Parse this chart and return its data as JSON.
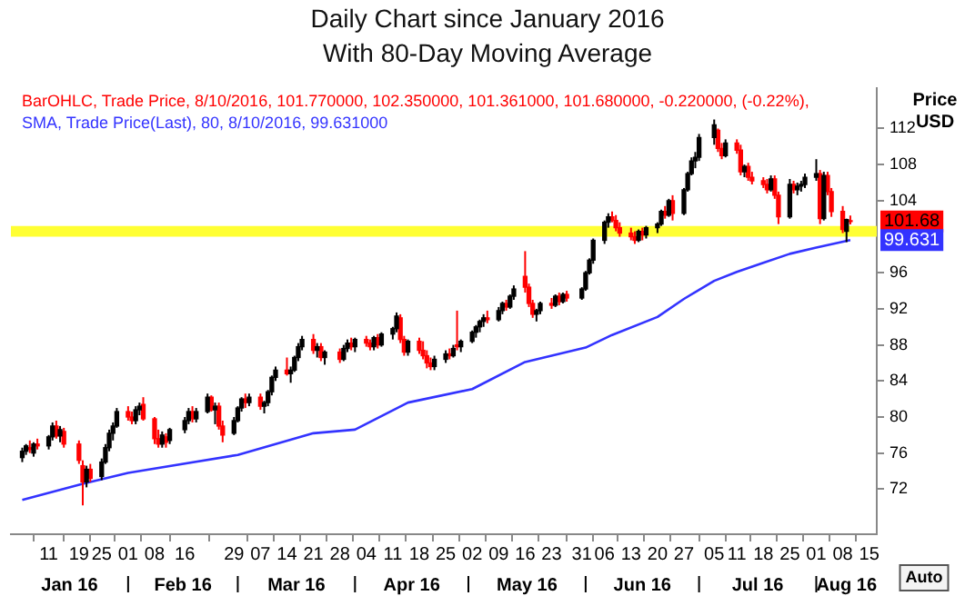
{
  "chart_data": {
    "type": "candlestick",
    "title": "Daily Chart since January 2016",
    "subtitle": "With 80-Day Moving Average",
    "ylabel": "Price USD",
    "xlim": [
      "2016-01-01",
      "2016-08-17"
    ],
    "xticks": [
      {
        "value": "2016-01-11",
        "label": "11"
      },
      {
        "value": "2016-01-19",
        "label": "19"
      },
      {
        "value": "2016-01-25",
        "label": "25"
      },
      {
        "value": "2016-02-01",
        "label": "01"
      },
      {
        "value": "2016-02-08",
        "label": "08"
      },
      {
        "value": "2016-02-16",
        "label": "16"
      },
      {
        "value": "2016-02-29",
        "label": "29"
      },
      {
        "value": "2016-03-07",
        "label": "07"
      },
      {
        "value": "2016-03-14",
        "label": "14"
      },
      {
        "value": "2016-03-21",
        "label": "21"
      },
      {
        "value": "2016-03-28",
        "label": "28"
      },
      {
        "value": "2016-04-04",
        "label": "04"
      },
      {
        "value": "2016-04-11",
        "label": "11"
      },
      {
        "value": "2016-04-18",
        "label": "18"
      },
      {
        "value": "2016-04-25",
        "label": "25"
      },
      {
        "value": "2016-05-02",
        "label": "02"
      },
      {
        "value": "2016-05-09",
        "label": "09"
      },
      {
        "value": "2016-05-16",
        "label": "16"
      },
      {
        "value": "2016-05-23",
        "label": "23"
      },
      {
        "value": "2016-05-31",
        "label": "31"
      },
      {
        "value": "2016-06-06",
        "label": "06"
      },
      {
        "value": "2016-06-13",
        "label": "13"
      },
      {
        "value": "2016-06-20",
        "label": "20"
      },
      {
        "value": "2016-06-27",
        "label": "27"
      },
      {
        "value": "2016-07-05",
        "label": "05"
      },
      {
        "value": "2016-07-11",
        "label": "11"
      },
      {
        "value": "2016-07-18",
        "label": "18"
      },
      {
        "value": "2016-07-25",
        "label": "25"
      },
      {
        "value": "2016-08-01",
        "label": "01"
      },
      {
        "value": "2016-08-08",
        "label": "08"
      },
      {
        "value": "2016-08-15",
        "label": "15"
      }
    ],
    "ylim": [
      67,
      116.5
    ],
    "yticks": [
      72,
      76,
      80,
      84,
      88,
      92,
      96,
      104,
      108,
      112
    ],
    "grid": false,
    "legend": "top left",
    "bands": [
      {
        "axis": "y",
        "from": 100.0,
        "to": 101.2,
        "color": "#ffff33"
      }
    ],
    "annotations": [
      {
        "text": "101.68",
        "y": 101.68
      },
      {
        "text": "99.631",
        "y": 99.631
      },
      "Jan 16",
      "Feb 16",
      "Mar 16",
      "Apr 16",
      "May 16",
      "Jun 16",
      "Jul 16",
      "Aug 16",
      "Auto"
    ],
    "series": [
      {
        "color": "#000000",
        "x": [
          "2016-01-04",
          "2016-01-05",
          "2016-01-07",
          "2016-01-11",
          "2016-01-12",
          "2016-01-14",
          "2016-01-21",
          "2016-01-25",
          "2016-01-26",
          "2016-01-27",
          "2016-01-28",
          "2016-01-29",
          "2016-02-03",
          "2016-02-04",
          "2016-02-10",
          "2016-02-12",
          "2016-02-16",
          "2016-02-17",
          "2016-02-19",
          "2016-02-22",
          "2016-02-24",
          "2016-02-29",
          "2016-03-01",
          "2016-03-02",
          "2016-03-04",
          "2016-03-08",
          "2016-03-09",
          "2016-03-10",
          "2016-03-11",
          "2016-03-15",
          "2016-03-16",
          "2016-03-17",
          "2016-03-18",
          "2016-03-22",
          "2016-03-24",
          "2016-03-29",
          "2016-03-30",
          "2016-04-01",
          "2016-04-06",
          "2016-04-08",
          "2016-04-11",
          "2016-04-12",
          "2016-04-15",
          "2016-04-22",
          "2016-04-25",
          "2016-04-27",
          "2016-04-29",
          "2016-05-02",
          "2016-05-03",
          "2016-05-04",
          "2016-05-05",
          "2016-05-09",
          "2016-05-10",
          "2016-05-12",
          "2016-05-13",
          "2016-05-19",
          "2016-05-20",
          "2016-05-24",
          "2016-05-26",
          "2016-05-31",
          "2016-06-01",
          "2016-06-02",
          "2016-06-03",
          "2016-06-06",
          "2016-06-07",
          "2016-06-15",
          "2016-06-17",
          "2016-06-20",
          "2016-06-21",
          "2016-06-23",
          "2016-06-27",
          "2016-06-28",
          "2016-06-29",
          "2016-06-30",
          "2016-07-01",
          "2016-07-05",
          "2016-07-08",
          "2016-07-13",
          "2016-07-20",
          "2016-07-25",
          "2016-07-27",
          "2016-07-28",
          "2016-07-29",
          "2016-08-01",
          "2016-08-03",
          "2016-08-09"
        ],
        "ohlc": [
          [
            75.5,
            76.6,
            75.0,
            76.2
          ],
          [
            76.2,
            77.0,
            75.8,
            76.8
          ],
          [
            76.0,
            77.2,
            75.6,
            77.0
          ],
          [
            76.8,
            78.0,
            76.4,
            77.8
          ],
          [
            77.8,
            79.4,
            77.4,
            79.0
          ],
          [
            77.9,
            79.0,
            77.2,
            78.6
          ],
          [
            72.8,
            74.6,
            72.2,
            74.2
          ],
          [
            73.4,
            75.4,
            73.0,
            75.0
          ],
          [
            75.0,
            77.0,
            74.8,
            76.6
          ],
          [
            76.6,
            78.6,
            76.2,
            78.2
          ],
          [
            78.2,
            79.4,
            77.4,
            79.0
          ],
          [
            79.0,
            81.0,
            78.8,
            80.6
          ],
          [
            79.6,
            81.2,
            79.2,
            80.8
          ],
          [
            80.8,
            81.6,
            80.2,
            81.2
          ],
          [
            77.0,
            78.4,
            76.6,
            78.0
          ],
          [
            77.4,
            78.8,
            77.0,
            78.6
          ],
          [
            78.6,
            80.0,
            78.2,
            79.6
          ],
          [
            79.6,
            81.0,
            79.2,
            80.6
          ],
          [
            79.8,
            81.0,
            79.4,
            80.6
          ],
          [
            80.6,
            82.6,
            80.4,
            82.2
          ],
          [
            80.8,
            81.6,
            79.2,
            81.2
          ],
          [
            78.2,
            80.0,
            78.0,
            79.6
          ],
          [
            79.6,
            81.2,
            79.4,
            81.0
          ],
          [
            81.0,
            82.2,
            80.6,
            82.0
          ],
          [
            81.6,
            82.6,
            81.2,
            82.2
          ],
          [
            81.2,
            81.8,
            80.4,
            81.6
          ],
          [
            81.6,
            83.0,
            81.2,
            82.8
          ],
          [
            82.8,
            84.6,
            82.4,
            84.4
          ],
          [
            84.4,
            85.6,
            84.0,
            85.2
          ],
          [
            84.8,
            85.6,
            83.8,
            85.2
          ],
          [
            85.2,
            86.8,
            85.0,
            86.6
          ],
          [
            86.6,
            88.2,
            86.2,
            87.8
          ],
          [
            87.8,
            89.0,
            87.4,
            88.6
          ],
          [
            87.4,
            88.2,
            86.6,
            87.8
          ],
          [
            86.6,
            87.4,
            85.8,
            87.2
          ],
          [
            86.4,
            88.0,
            86.2,
            87.6
          ],
          [
            87.6,
            88.6,
            87.2,
            88.2
          ],
          [
            87.8,
            88.8,
            87.2,
            88.6
          ],
          [
            87.8,
            89.0,
            87.4,
            88.8
          ],
          [
            88.0,
            89.4,
            87.8,
            89.2
          ],
          [
            89.2,
            90.0,
            88.6,
            89.8
          ],
          [
            89.8,
            91.6,
            89.4,
            91.2
          ],
          [
            87.2,
            88.6,
            86.8,
            88.4
          ],
          [
            85.6,
            86.8,
            85.2,
            86.4
          ],
          [
            86.4,
            87.4,
            86.0,
            87.0
          ],
          [
            86.8,
            88.0,
            86.6,
            87.6
          ],
          [
            87.8,
            88.6,
            87.2,
            88.4
          ],
          [
            88.4,
            89.6,
            88.2,
            89.4
          ],
          [
            89.4,
            90.2,
            88.8,
            90.0
          ],
          [
            90.0,
            90.8,
            89.4,
            90.6
          ],
          [
            90.6,
            91.4,
            90.0,
            91.0
          ],
          [
            90.8,
            92.2,
            90.6,
            91.8
          ],
          [
            91.8,
            92.8,
            91.4,
            92.6
          ],
          [
            92.2,
            93.6,
            92.0,
            93.4
          ],
          [
            93.4,
            94.6,
            93.0,
            94.2
          ],
          [
            91.4,
            92.0,
            90.6,
            91.8
          ],
          [
            91.8,
            92.8,
            91.4,
            92.6
          ],
          [
            92.4,
            93.6,
            92.2,
            93.4
          ],
          [
            92.8,
            93.8,
            92.6,
            93.6
          ],
          [
            93.2,
            94.4,
            93.0,
            94.2
          ],
          [
            94.2,
            96.2,
            94.0,
            96.0
          ],
          [
            96.0,
            97.6,
            95.8,
            97.4
          ],
          [
            97.4,
            99.8,
            97.0,
            99.6
          ],
          [
            99.6,
            101.8,
            99.2,
            101.6
          ],
          [
            101.6,
            102.6,
            101.0,
            102.2
          ],
          [
            99.6,
            100.8,
            99.4,
            100.6
          ],
          [
            100.2,
            101.2,
            99.8,
            101.0
          ],
          [
            101.0,
            101.6,
            100.4,
            101.4
          ],
          [
            101.4,
            103.0,
            101.2,
            102.8
          ],
          [
            102.4,
            104.2,
            102.2,
            104.0
          ],
          [
            102.6,
            105.4,
            102.4,
            105.2
          ],
          [
            105.2,
            107.2,
            105.0,
            107.0
          ],
          [
            107.0,
            108.8,
            106.8,
            108.4
          ],
          [
            108.4,
            109.4,
            107.6,
            108.8
          ],
          [
            108.8,
            111.4,
            108.4,
            111.0
          ],
          [
            111.0,
            113.0,
            110.2,
            112.4
          ],
          [
            109.0,
            110.8,
            108.8,
            110.4
          ],
          [
            107.2,
            108.0,
            106.6,
            107.8
          ],
          [
            105.2,
            106.8,
            105.0,
            106.4
          ],
          [
            102.2,
            106.4,
            102.0,
            105.8
          ],
          [
            105.2,
            106.0,
            104.6,
            105.6
          ],
          [
            105.6,
            106.2,
            105.0,
            105.8
          ],
          [
            105.8,
            107.0,
            105.4,
            106.6
          ],
          [
            106.6,
            108.6,
            106.2,
            107.0
          ],
          [
            102.0,
            107.2,
            101.8,
            106.8
          ],
          [
            100.6,
            102.0,
            99.4,
            101.9
          ]
        ]
      },
      {
        "name": "BarOHLC, Trade Price, 8/10/2016, 101.770000, 102.350000, 101.361000, 101.680000, -0.220000, (-0.22%),",
        "color": "#ff0000",
        "x": [
          "2016-01-06",
          "2016-01-08",
          "2016-01-13",
          "2016-01-15",
          "2016-01-19",
          "2016-01-20",
          "2016-01-22",
          "2016-02-01",
          "2016-02-02",
          "2016-02-05",
          "2016-02-08",
          "2016-02-09",
          "2016-02-11",
          "2016-02-18",
          "2016-02-23",
          "2016-02-25",
          "2016-02-26",
          "2016-03-03",
          "2016-03-07",
          "2016-03-14",
          "2016-03-21",
          "2016-03-23",
          "2016-03-28",
          "2016-03-31",
          "2016-04-04",
          "2016-04-05",
          "2016-04-07",
          "2016-04-13",
          "2016-04-14",
          "2016-04-18",
          "2016-04-19",
          "2016-04-20",
          "2016-04-21",
          "2016-04-26",
          "2016-04-28",
          "2016-05-06",
          "2016-05-11",
          "2016-05-16",
          "2016-05-17",
          "2016-05-18",
          "2016-05-23",
          "2016-05-25",
          "2016-05-27",
          "2016-06-08",
          "2016-06-09",
          "2016-06-10",
          "2016-06-13",
          "2016-06-14",
          "2016-06-16",
          "2016-06-22",
          "2016-06-24",
          "2016-07-06",
          "2016-07-07",
          "2016-07-11",
          "2016-07-12",
          "2016-07-14",
          "2016-07-15",
          "2016-07-18",
          "2016-07-19",
          "2016-07-21",
          "2016-07-22",
          "2016-07-26",
          "2016-08-02",
          "2016-08-04",
          "2016-08-05",
          "2016-08-08",
          "2016-08-10"
        ],
        "ohlc": [
          [
            76.6,
            77.4,
            76.0,
            76.4
          ],
          [
            77.0,
            77.6,
            76.4,
            76.8
          ],
          [
            79.0,
            79.6,
            77.6,
            77.9
          ],
          [
            78.4,
            78.8,
            76.6,
            77.0
          ],
          [
            77.0,
            77.4,
            74.8,
            75.2
          ],
          [
            74.6,
            75.2,
            70.2,
            72.8
          ],
          [
            74.2,
            74.8,
            72.8,
            73.2
          ],
          [
            80.6,
            81.2,
            79.6,
            80.0
          ],
          [
            80.0,
            80.6,
            79.2,
            79.6
          ],
          [
            81.4,
            82.2,
            79.6,
            79.8
          ],
          [
            79.8,
            80.0,
            77.0,
            77.6
          ],
          [
            77.6,
            78.6,
            76.6,
            77.0
          ],
          [
            77.8,
            78.2,
            76.6,
            77.2
          ],
          [
            80.6,
            81.2,
            79.4,
            79.8
          ],
          [
            82.2,
            82.4,
            80.6,
            80.8
          ],
          [
            81.2,
            81.6,
            78.6,
            79.0
          ],
          [
            79.0,
            79.6,
            77.2,
            78.0
          ],
          [
            82.0,
            82.6,
            81.0,
            81.6
          ],
          [
            82.2,
            82.6,
            80.8,
            81.2
          ],
          [
            85.2,
            86.6,
            84.6,
            84.8
          ],
          [
            88.6,
            89.2,
            87.0,
            87.4
          ],
          [
            87.8,
            88.2,
            86.2,
            86.6
          ],
          [
            87.2,
            87.6,
            86.0,
            86.4
          ],
          [
            88.2,
            88.8,
            87.4,
            87.8
          ],
          [
            88.6,
            89.0,
            87.8,
            88.2
          ],
          [
            88.2,
            88.6,
            87.4,
            87.8
          ],
          [
            88.8,
            89.2,
            87.6,
            88.0
          ],
          [
            91.0,
            91.4,
            88.2,
            88.6
          ],
          [
            88.6,
            89.0,
            86.8,
            87.2
          ],
          [
            88.4,
            88.8,
            87.0,
            87.4
          ],
          [
            87.4,
            88.4,
            86.4,
            86.8
          ],
          [
            86.8,
            87.4,
            85.4,
            86.0
          ],
          [
            86.0,
            86.6,
            85.2,
            85.6
          ],
          [
            87.0,
            87.6,
            86.4,
            86.8
          ],
          [
            88.0,
            91.8,
            87.4,
            87.8
          ],
          [
            91.0,
            91.8,
            90.4,
            90.8
          ],
          [
            92.6,
            93.0,
            91.8,
            92.2
          ],
          [
            95.6,
            98.4,
            93.8,
            94.4
          ],
          [
            94.4,
            94.8,
            92.2,
            92.6
          ],
          [
            92.6,
            93.0,
            91.0,
            91.4
          ],
          [
            92.6,
            93.2,
            92.0,
            92.4
          ],
          [
            93.4,
            93.8,
            92.4,
            92.8
          ],
          [
            93.6,
            94.0,
            92.8,
            93.2
          ],
          [
            102.2,
            102.8,
            101.6,
            101.8
          ],
          [
            101.8,
            102.4,
            100.6,
            101.0
          ],
          [
            101.0,
            101.6,
            100.0,
            100.4
          ],
          [
            100.4,
            101.0,
            99.6,
            100.0
          ],
          [
            100.0,
            100.6,
            99.2,
            99.6
          ],
          [
            100.6,
            101.0,
            99.6,
            100.2
          ],
          [
            102.8,
            103.4,
            102.0,
            102.4
          ],
          [
            104.0,
            104.6,
            101.8,
            102.6
          ],
          [
            111.8,
            112.0,
            109.4,
            109.8
          ],
          [
            109.8,
            110.4,
            108.6,
            109.0
          ],
          [
            110.4,
            110.8,
            109.2,
            109.6
          ],
          [
            109.6,
            110.2,
            106.8,
            107.2
          ],
          [
            107.8,
            108.2,
            106.2,
            106.6
          ],
          [
            106.6,
            107.2,
            105.8,
            106.2
          ],
          [
            106.2,
            106.6,
            105.4,
            105.8
          ],
          [
            105.8,
            106.4,
            104.8,
            105.2
          ],
          [
            106.4,
            106.8,
            104.2,
            104.6
          ],
          [
            104.6,
            105.0,
            101.4,
            102.2
          ],
          [
            105.8,
            106.2,
            104.8,
            105.2
          ],
          [
            107.0,
            107.4,
            101.4,
            102.0
          ],
          [
            106.8,
            107.2,
            104.6,
            105.0
          ],
          [
            105.0,
            105.4,
            102.2,
            102.8
          ],
          [
            102.8,
            103.4,
            100.4,
            100.8
          ],
          [
            101.77,
            102.35,
            101.361,
            101.68
          ]
        ]
      },
      {
        "type": "line",
        "name": "SMA, Trade Price(Last), 80, 8/10/2016, 99.631000",
        "color": "#3333ff",
        "marker": "none",
        "line_style": "solid",
        "x": [
          "2016-01-04",
          "2016-01-20",
          "2016-02-01",
          "2016-03-01",
          "2016-03-21",
          "2016-04-01",
          "2016-04-15",
          "2016-05-02",
          "2016-05-16",
          "2016-06-01",
          "2016-06-08",
          "2016-06-20",
          "2016-06-27",
          "2016-07-05",
          "2016-07-11",
          "2016-07-18",
          "2016-07-25",
          "2016-08-01",
          "2016-08-10"
        ],
        "values": [
          70.8,
          72.6,
          73.8,
          75.8,
          78.2,
          78.6,
          81.6,
          83.1,
          86.1,
          87.7,
          89.1,
          91.1,
          93.1,
          95.1,
          96.1,
          97.1,
          98.1,
          98.8,
          99.631
        ]
      }
    ]
  }
}
